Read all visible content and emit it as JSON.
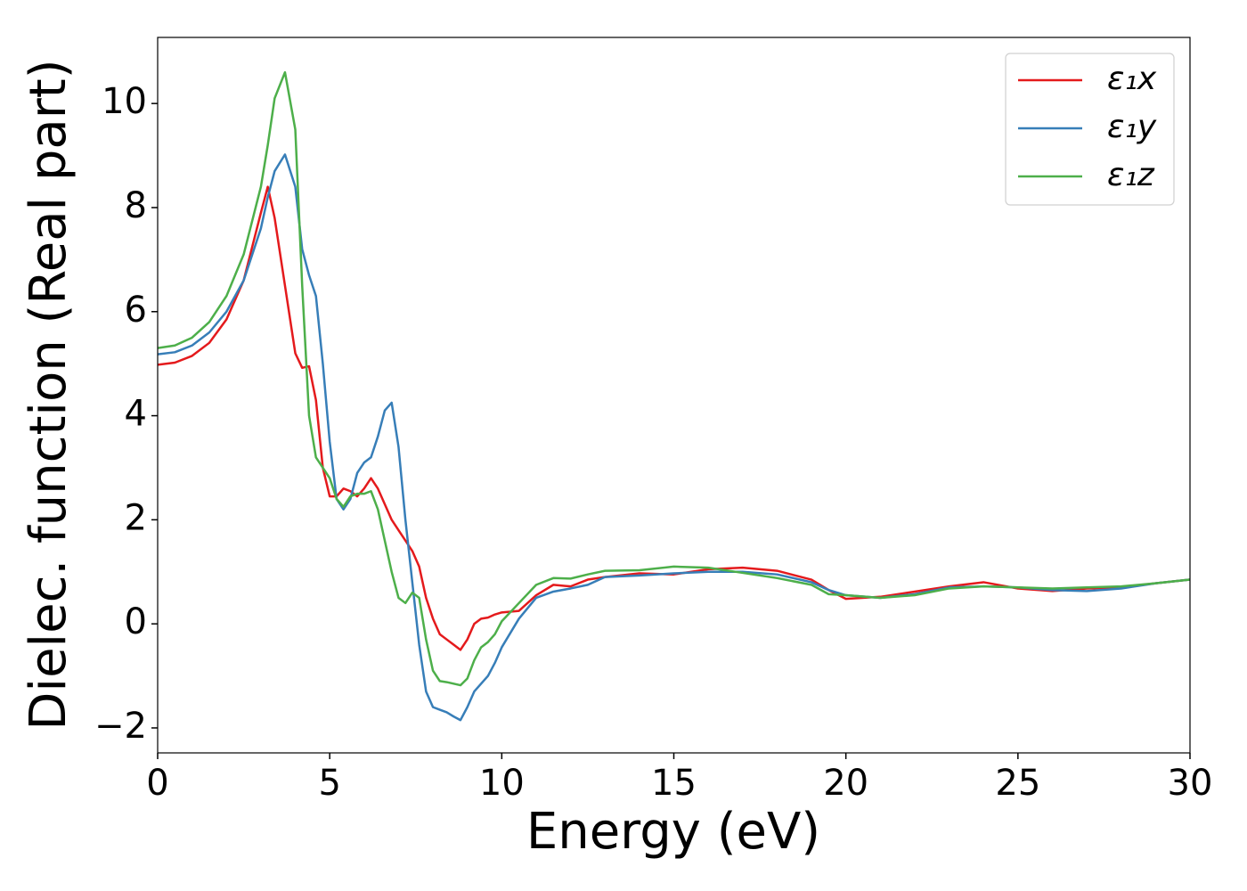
{
  "chart_data": {
    "type": "line",
    "xlabel": "Energy (eV)",
    "ylabel": "Dielec. function (Real part)",
    "x": [
      0,
      0.5,
      1,
      1.5,
      2,
      2.5,
      3,
      3.2,
      3.4,
      3.7,
      4,
      4.2,
      4.4,
      4.6,
      4.8,
      5,
      5.2,
      5.4,
      5.6,
      5.8,
      6,
      6.2,
      6.4,
      6.6,
      6.8,
      7,
      7.2,
      7.4,
      7.6,
      7.8,
      8,
      8.2,
      8.4,
      8.6,
      8.8,
      9,
      9.2,
      9.4,
      9.6,
      9.8,
      10,
      10.5,
      11,
      11.5,
      12,
      12.5,
      13,
      14,
      15,
      16,
      17,
      18,
      19,
      19.5,
      20,
      21,
      22,
      23,
      24,
      25,
      26,
      27,
      28,
      29,
      30
    ],
    "series": [
      {
        "name": "ε₁x",
        "color": "#e41a1c",
        "values": [
          4.98,
          5.02,
          5.15,
          5.4,
          5.85,
          6.6,
          7.9,
          8.4,
          7.8,
          6.5,
          5.2,
          4.92,
          4.95,
          4.3,
          3.0,
          2.45,
          2.45,
          2.6,
          2.55,
          2.45,
          2.6,
          2.8,
          2.6,
          2.3,
          2.0,
          1.8,
          1.6,
          1.4,
          1.1,
          0.5,
          0.1,
          -0.2,
          -0.3,
          -0.4,
          -0.5,
          -0.3,
          0.0,
          0.1,
          0.12,
          0.18,
          0.22,
          0.25,
          0.55,
          0.75,
          0.72,
          0.85,
          0.9,
          0.97,
          0.95,
          1.05,
          1.08,
          1.02,
          0.85,
          0.65,
          0.48,
          0.52,
          0.62,
          0.72,
          0.8,
          0.68,
          0.63,
          0.68,
          0.7,
          0.78,
          0.85
        ]
      },
      {
        "name": "ε₁y",
        "color": "#377eb8",
        "values": [
          5.18,
          5.22,
          5.35,
          5.6,
          6.0,
          6.6,
          7.6,
          8.2,
          8.7,
          9.02,
          8.4,
          7.2,
          6.7,
          6.3,
          5.0,
          3.5,
          2.4,
          2.2,
          2.4,
          2.9,
          3.1,
          3.2,
          3.6,
          4.1,
          4.25,
          3.4,
          2.0,
          0.8,
          -0.4,
          -1.3,
          -1.6,
          -1.65,
          -1.7,
          -1.78,
          -1.85,
          -1.6,
          -1.3,
          -1.15,
          -1.0,
          -0.75,
          -0.45,
          0.1,
          0.5,
          0.62,
          0.68,
          0.75,
          0.9,
          0.93,
          0.97,
          1.0,
          1.0,
          0.95,
          0.8,
          0.65,
          0.55,
          0.5,
          0.57,
          0.7,
          0.72,
          0.7,
          0.65,
          0.63,
          0.68,
          0.78,
          0.85
        ]
      },
      {
        "name": "ε₁z",
        "color": "#4daf4a",
        "values": [
          5.3,
          5.35,
          5.5,
          5.8,
          6.3,
          7.1,
          8.4,
          9.2,
          10.1,
          10.6,
          9.5,
          6.5,
          4.0,
          3.2,
          3.0,
          2.8,
          2.4,
          2.25,
          2.45,
          2.5,
          2.5,
          2.55,
          2.2,
          1.6,
          1.0,
          0.5,
          0.4,
          0.6,
          0.5,
          -0.3,
          -0.9,
          -1.1,
          -1.12,
          -1.15,
          -1.18,
          -1.05,
          -0.7,
          -0.45,
          -0.35,
          -0.2,
          0.05,
          0.4,
          0.75,
          0.88,
          0.87,
          0.95,
          1.02,
          1.03,
          1.1,
          1.08,
          0.98,
          0.88,
          0.75,
          0.57,
          0.55,
          0.5,
          0.55,
          0.68,
          0.72,
          0.7,
          0.68,
          0.7,
          0.72,
          0.78,
          0.85
        ]
      }
    ],
    "xlim": [
      0,
      30
    ],
    "ylim": [
      -2.48,
      11.27
    ],
    "xticks": [
      0,
      5,
      10,
      15,
      20,
      25,
      30
    ],
    "yticks": [
      {
        "value": -2,
        "label": "−2"
      },
      0,
      2,
      4,
      6,
      8,
      10
    ],
    "legend": "upper right"
  }
}
